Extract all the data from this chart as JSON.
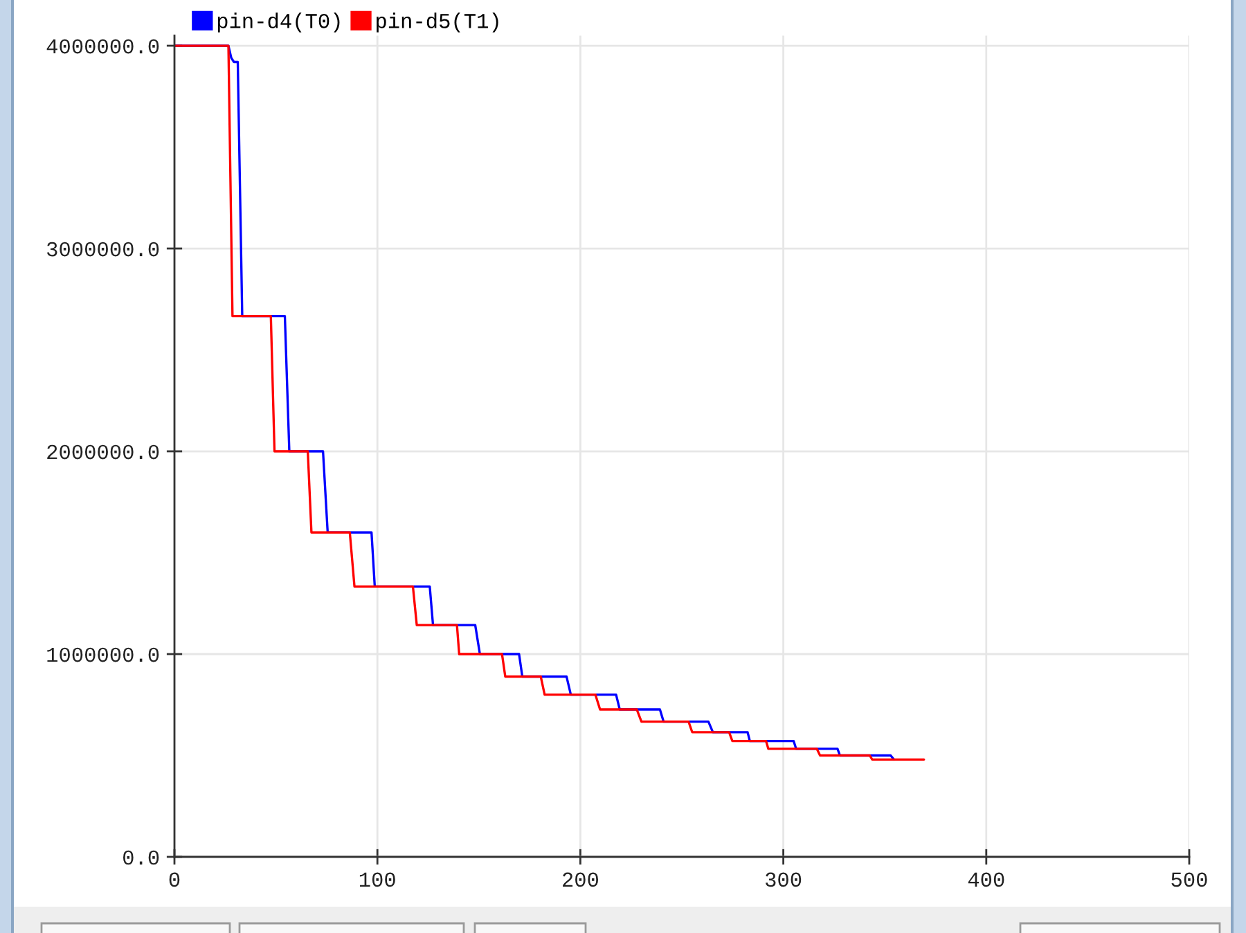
{
  "chart_data": {
    "type": "line",
    "series": [
      {
        "name": "pin-d4(T0)",
        "color": "#0000ff",
        "x": [
          0,
          26.6,
          28.0,
          29.3,
          31.2,
          33.4,
          54.4,
          56.6,
          73.2,
          75.5,
          97.1,
          98.7,
          125.8,
          127.4,
          148.2,
          150.5,
          169.8,
          171.4,
          193.2,
          195.3,
          217.6,
          219.4,
          239.2,
          241.0,
          263.1,
          265.3,
          282.4,
          283.5,
          305.1,
          306.3,
          326.7,
          327.9,
          352.9,
          354.5
        ],
        "values": [
          4000000,
          4000000,
          3940000,
          3920000,
          3920000,
          2667000,
          2667000,
          2000000,
          2000000,
          1600000,
          1600000,
          1333000,
          1333000,
          1143000,
          1143000,
          1000000,
          1000000,
          889000,
          889000,
          800000,
          800000,
          727000,
          727000,
          667000,
          667000,
          615000,
          615000,
          571000,
          571000,
          533000,
          533000,
          500000,
          500000,
          480000
        ]
      },
      {
        "name": "pin-d5(T1)",
        "color": "#ff0000",
        "x": [
          0,
          26.6,
          28.6,
          47.5,
          49.3,
          65.7,
          67.5,
          86.4,
          88.7,
          117.5,
          119.4,
          139.2,
          140.3,
          161.4,
          163.0,
          180.5,
          182.4,
          207.4,
          209.7,
          227.8,
          230.1,
          253.3,
          255.1,
          273.3,
          274.9,
          291.5,
          292.6,
          316.5,
          318.1,
          342.6,
          343.8,
          369.3
        ],
        "values": [
          4000000,
          4000000,
          2667000,
          2667000,
          2000000,
          2000000,
          1600000,
          1600000,
          1333000,
          1333000,
          1143000,
          1143000,
          1000000,
          1000000,
          889000,
          889000,
          800000,
          800000,
          727000,
          727000,
          667000,
          667000,
          615000,
          615000,
          571000,
          571000,
          533000,
          533000,
          500000,
          500000,
          480000,
          480000
        ]
      }
    ],
    "xlim": [
      0,
      500
    ],
    "xticks": [
      0,
      100,
      200,
      300,
      400,
      500
    ],
    "ylim": [
      0,
      4050000
    ],
    "yticks": [
      {
        "value": 0,
        "label": "0.0"
      },
      {
        "value": 1000000,
        "label": "1000000.0"
      },
      {
        "value": 2000000,
        "label": "2000000.0"
      },
      {
        "value": 3000000,
        "label": "3000000.0"
      },
      {
        "value": 4000000,
        "label": "4000000.0"
      }
    ],
    "grid": true,
    "legend": "top left"
  }
}
